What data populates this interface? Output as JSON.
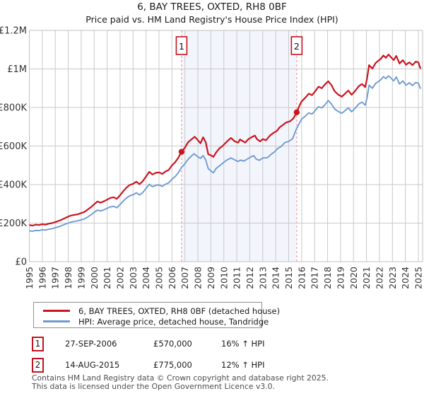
{
  "chart_data": {
    "type": "line",
    "title": "6, BAY TREES, OXTED, RH8 0BF",
    "subtitle": "Price paid vs. HM Land Registry's House Price Index (HPI)",
    "xlabel": "",
    "ylabel": "",
    "units": "GBP thousands",
    "grid": true,
    "legend_position": "bottom",
    "xlim": [
      1995,
      2025
    ],
    "ylim": [
      0,
      1200
    ],
    "y_ticks": [
      {
        "value": 0,
        "label": "£0"
      },
      {
        "value": 200,
        "label": "£200K"
      },
      {
        "value": 400,
        "label": "£400K"
      },
      {
        "value": 600,
        "label": "£600K"
      },
      {
        "value": 800,
        "label": "£800K"
      },
      {
        "value": 1000,
        "label": "£1M"
      },
      {
        "value": 1200,
        "label": "£1.2M"
      }
    ],
    "x_ticks": [
      1995,
      1996,
      1997,
      1998,
      1999,
      2000,
      2001,
      2002,
      2003,
      2004,
      2005,
      2006,
      2007,
      2008,
      2009,
      2010,
      2011,
      2012,
      2013,
      2014,
      2015,
      2016,
      2017,
      2018,
      2019,
      2020,
      2021,
      2022,
      2023,
      2024,
      2025
    ],
    "shaded_span": [
      2006.74,
      2015.62
    ],
    "sale_markers": [
      {
        "label": "1",
        "x": 2006.74,
        "y": 570
      },
      {
        "label": "2",
        "x": 2015.62,
        "y": 775
      }
    ],
    "colors": {
      "property_line": "#cc1420",
      "hpi_line": "#6f9bd2",
      "shade": "#f3f5fc",
      "grid": "#c9c9c9",
      "plot_border": "#c0c0c0",
      "dashed_marker": "#f29e9e",
      "marker_box_border": "#c41220",
      "tick_text": "#333333"
    },
    "series": [
      {
        "name": "6, BAY TREES, OXTED, RH8 0BF (detached house)",
        "color": "#cc1420",
        "points": [
          [
            1995.0,
            190
          ],
          [
            1995.25,
            187
          ],
          [
            1995.5,
            192
          ],
          [
            1995.75,
            190
          ],
          [
            1996.0,
            194
          ],
          [
            1996.25,
            192
          ],
          [
            1996.5,
            197
          ],
          [
            1996.75,
            200
          ],
          [
            1997.0,
            205
          ],
          [
            1997.25,
            211
          ],
          [
            1997.5,
            218
          ],
          [
            1997.75,
            226
          ],
          [
            1998.0,
            234
          ],
          [
            1998.25,
            240
          ],
          [
            1998.5,
            243
          ],
          [
            1998.75,
            246
          ],
          [
            1999.0,
            252
          ],
          [
            1999.25,
            258
          ],
          [
            1999.5,
            270
          ],
          [
            1999.75,
            283
          ],
          [
            2000.0,
            298
          ],
          [
            2000.25,
            312
          ],
          [
            2000.5,
            306
          ],
          [
            2000.75,
            313
          ],
          [
            2001.0,
            322
          ],
          [
            2001.25,
            331
          ],
          [
            2001.5,
            334
          ],
          [
            2001.75,
            326
          ],
          [
            2002.0,
            345
          ],
          [
            2002.25,
            366
          ],
          [
            2002.5,
            385
          ],
          [
            2002.75,
            398
          ],
          [
            2003.0,
            404
          ],
          [
            2003.25,
            415
          ],
          [
            2003.5,
            402
          ],
          [
            2003.75,
            418
          ],
          [
            2004.0,
            442
          ],
          [
            2004.25,
            466
          ],
          [
            2004.5,
            452
          ],
          [
            2004.75,
            461
          ],
          [
            2005.0,
            463
          ],
          [
            2005.25,
            455
          ],
          [
            2005.5,
            468
          ],
          [
            2005.75,
            476
          ],
          [
            2006.0,
            500
          ],
          [
            2006.25,
            516
          ],
          [
            2006.5,
            540
          ],
          [
            2006.74,
            570
          ],
          [
            2007.0,
            592
          ],
          [
            2007.25,
            620
          ],
          [
            2007.5,
            634
          ],
          [
            2007.75,
            648
          ],
          [
            2008.0,
            630
          ],
          [
            2008.2,
            614
          ],
          [
            2008.4,
            645
          ],
          [
            2008.6,
            620
          ],
          [
            2008.8,
            557
          ],
          [
            2009.0,
            552
          ],
          [
            2009.2,
            544
          ],
          [
            2009.4,
            566
          ],
          [
            2009.65,
            587
          ],
          [
            2009.9,
            600
          ],
          [
            2010.25,
            624
          ],
          [
            2010.55,
            642
          ],
          [
            2010.85,
            624
          ],
          [
            2011.1,
            618
          ],
          [
            2011.25,
            634
          ],
          [
            2011.5,
            624
          ],
          [
            2011.65,
            618
          ],
          [
            2011.9,
            636
          ],
          [
            2012.2,
            648
          ],
          [
            2012.4,
            654
          ],
          [
            2012.55,
            636
          ],
          [
            2012.8,
            624
          ],
          [
            2013.0,
            636
          ],
          [
            2013.25,
            630
          ],
          [
            2013.55,
            654
          ],
          [
            2013.8,
            667
          ],
          [
            2014.1,
            679
          ],
          [
            2014.3,
            697
          ],
          [
            2014.55,
            709
          ],
          [
            2014.8,
            722
          ],
          [
            2015.1,
            728
          ],
          [
            2015.35,
            742
          ],
          [
            2015.62,
            775
          ],
          [
            2015.85,
            812
          ],
          [
            2016.0,
            832
          ],
          [
            2016.3,
            852
          ],
          [
            2016.55,
            872
          ],
          [
            2016.8,
            864
          ],
          [
            2017.0,
            880
          ],
          [
            2017.3,
            908
          ],
          [
            2017.55,
            900
          ],
          [
            2017.8,
            920
          ],
          [
            2018.05,
            936
          ],
          [
            2018.3,
            916
          ],
          [
            2018.55,
            884
          ],
          [
            2018.8,
            868
          ],
          [
            2019.1,
            856
          ],
          [
            2019.35,
            872
          ],
          [
            2019.6,
            888
          ],
          [
            2019.85,
            866
          ],
          [
            2020.1,
            884
          ],
          [
            2020.4,
            910
          ],
          [
            2020.65,
            922
          ],
          [
            2020.9,
            906
          ],
          [
            2021.05,
            952
          ],
          [
            2021.2,
            1020
          ],
          [
            2021.45,
            1002
          ],
          [
            2021.7,
            1030
          ],
          [
            2021.9,
            1042
          ],
          [
            2022.1,
            1052
          ],
          [
            2022.3,
            1070
          ],
          [
            2022.5,
            1058
          ],
          [
            2022.7,
            1075
          ],
          [
            2022.9,
            1060
          ],
          [
            2023.1,
            1046
          ],
          [
            2023.3,
            1068
          ],
          [
            2023.55,
            1028
          ],
          [
            2023.8,
            1046
          ],
          [
            2024.05,
            1022
          ],
          [
            2024.3,
            1034
          ],
          [
            2024.55,
            1020
          ],
          [
            2024.8,
            1038
          ],
          [
            2025.0,
            1034
          ],
          [
            2025.15,
            1004
          ]
        ]
      },
      {
        "name": "HPI: Average price, detached house, Tandridge",
        "color": "#6f9bd2",
        "points": [
          [
            1995.0,
            160
          ],
          [
            1995.25,
            158
          ],
          [
            1995.5,
            162
          ],
          [
            1995.75,
            161
          ],
          [
            1996.0,
            165
          ],
          [
            1996.25,
            164
          ],
          [
            1996.5,
            168
          ],
          [
            1996.75,
            171
          ],
          [
            1997.0,
            176
          ],
          [
            1997.25,
            181
          ],
          [
            1997.5,
            187
          ],
          [
            1997.75,
            194
          ],
          [
            1998.0,
            200
          ],
          [
            1998.25,
            206
          ],
          [
            1998.5,
            209
          ],
          [
            1998.75,
            212
          ],
          [
            1999.0,
            217
          ],
          [
            1999.25,
            222
          ],
          [
            1999.5,
            232
          ],
          [
            1999.75,
            243
          ],
          [
            2000.0,
            256
          ],
          [
            2000.25,
            267
          ],
          [
            2000.5,
            263
          ],
          [
            2000.75,
            269
          ],
          [
            2001.0,
            277
          ],
          [
            2001.25,
            284
          ],
          [
            2001.5,
            287
          ],
          [
            2001.75,
            280
          ],
          [
            2002.0,
            297
          ],
          [
            2002.25,
            315
          ],
          [
            2002.5,
            331
          ],
          [
            2002.75,
            342
          ],
          [
            2003.0,
            347
          ],
          [
            2003.25,
            357
          ],
          [
            2003.5,
            346
          ],
          [
            2003.75,
            359
          ],
          [
            2004.0,
            380
          ],
          [
            2004.25,
            401
          ],
          [
            2004.5,
            389
          ],
          [
            2004.75,
            396
          ],
          [
            2005.0,
            398
          ],
          [
            2005.25,
            391
          ],
          [
            2005.5,
            402
          ],
          [
            2005.75,
            409
          ],
          [
            2006.0,
            428
          ],
          [
            2006.25,
            442
          ],
          [
            2006.5,
            462
          ],
          [
            2006.74,
            489
          ],
          [
            2007.0,
            508
          ],
          [
            2007.25,
            532
          ],
          [
            2007.5,
            548
          ],
          [
            2007.7,
            560
          ],
          [
            2008.0,
            544
          ],
          [
            2008.2,
            536
          ],
          [
            2008.4,
            550
          ],
          [
            2008.6,
            528
          ],
          [
            2008.8,
            483
          ],
          [
            2009.0,
            471
          ],
          [
            2009.2,
            461
          ],
          [
            2009.4,
            483
          ],
          [
            2009.65,
            496
          ],
          [
            2009.9,
            510
          ],
          [
            2010.2,
            526
          ],
          [
            2010.55,
            538
          ],
          [
            2010.9,
            526
          ],
          [
            2011.1,
            520
          ],
          [
            2011.3,
            527
          ],
          [
            2011.55,
            522
          ],
          [
            2011.8,
            532
          ],
          [
            2012.1,
            544
          ],
          [
            2012.3,
            550
          ],
          [
            2012.5,
            532
          ],
          [
            2012.75,
            526
          ],
          [
            2013.0,
            538
          ],
          [
            2013.35,
            539
          ],
          [
            2013.65,
            557
          ],
          [
            2013.9,
            569
          ],
          [
            2014.15,
            587
          ],
          [
            2014.45,
            599
          ],
          [
            2014.7,
            618
          ],
          [
            2015.0,
            624
          ],
          [
            2015.3,
            638
          ],
          [
            2015.62,
            692
          ],
          [
            2015.85,
            722
          ],
          [
            2016.0,
            740
          ],
          [
            2016.3,
            756
          ],
          [
            2016.55,
            772
          ],
          [
            2016.8,
            766
          ],
          [
            2017.0,
            780
          ],
          [
            2017.3,
            804
          ],
          [
            2017.55,
            798
          ],
          [
            2017.8,
            814
          ],
          [
            2018.05,
            836
          ],
          [
            2018.3,
            818
          ],
          [
            2018.55,
            792
          ],
          [
            2018.8,
            780
          ],
          [
            2019.1,
            770
          ],
          [
            2019.35,
            784
          ],
          [
            2019.6,
            798
          ],
          [
            2019.85,
            778
          ],
          [
            2020.1,
            794
          ],
          [
            2020.4,
            818
          ],
          [
            2020.65,
            828
          ],
          [
            2020.9,
            812
          ],
          [
            2021.05,
            852
          ],
          [
            2021.2,
            916
          ],
          [
            2021.45,
            900
          ],
          [
            2021.7,
            924
          ],
          [
            2021.9,
            934
          ],
          [
            2022.1,
            944
          ],
          [
            2022.3,
            960
          ],
          [
            2022.5,
            950
          ],
          [
            2022.7,
            964
          ],
          [
            2022.9,
            952
          ],
          [
            2023.1,
            938
          ],
          [
            2023.3,
            958
          ],
          [
            2023.55,
            922
          ],
          [
            2023.8,
            938
          ],
          [
            2024.05,
            916
          ],
          [
            2024.3,
            928
          ],
          [
            2024.55,
            914
          ],
          [
            2024.8,
            930
          ],
          [
            2025.0,
            926
          ],
          [
            2025.15,
            900
          ]
        ]
      }
    ]
  },
  "transactions": [
    {
      "num": "1",
      "date": "27-SEP-2006",
      "price": "£570,000",
      "vs_hpi": "16% ↑ HPI"
    },
    {
      "num": "2",
      "date": "14-AUG-2015",
      "price": "£775,000",
      "vs_hpi": "12% ↑ HPI"
    }
  ],
  "footer": {
    "line1": "Contains HM Land Registry data © Crown copyright and database right 2025.",
    "line2": "This data is licensed under the Open Government Licence v3.0."
  }
}
